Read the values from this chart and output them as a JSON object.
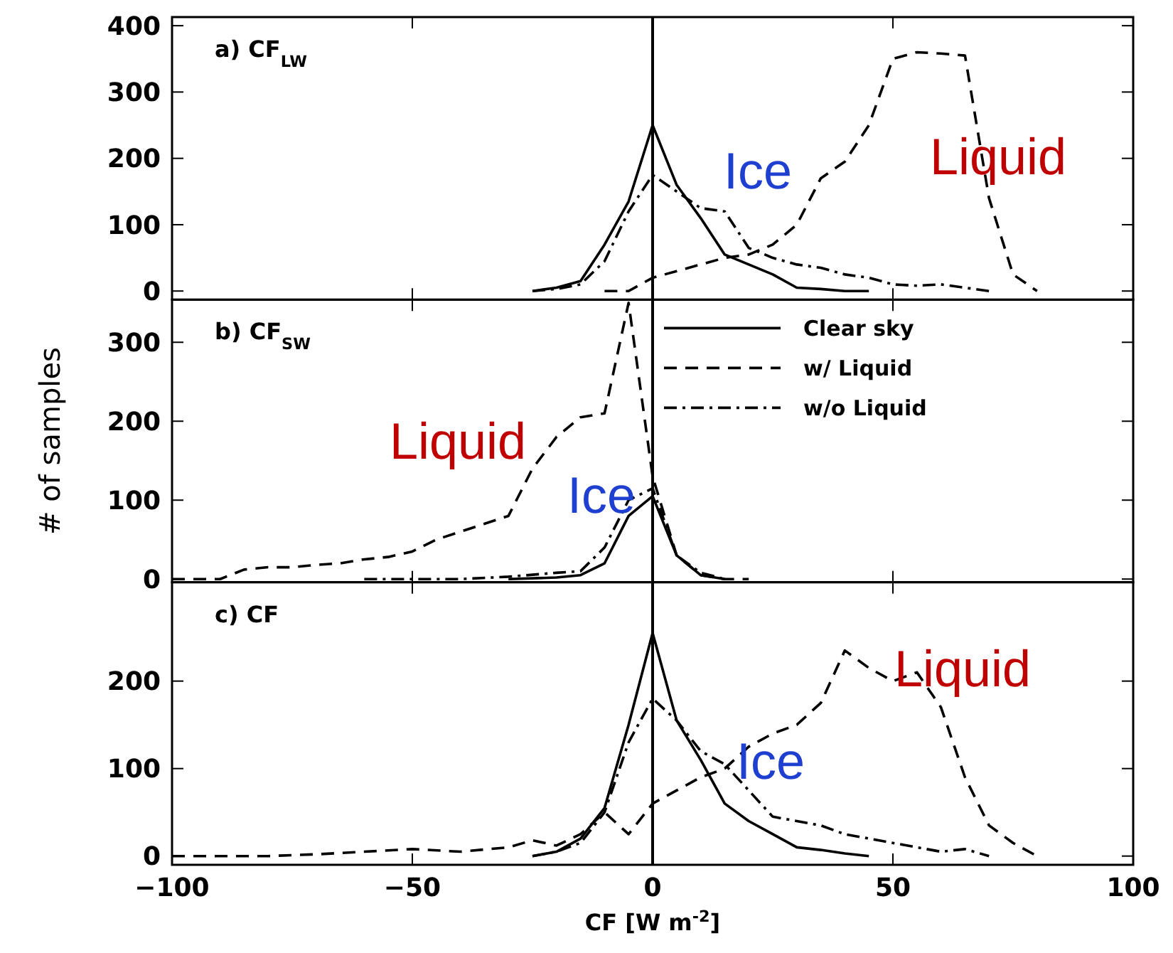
{
  "chart_data": [
    {
      "type": "line",
      "title": "a) CF$_{LW}$",
      "xlim": [
        -100,
        100
      ],
      "xticks": [
        -100,
        -50,
        0,
        50,
        100
      ],
      "ylim": [
        -13,
        413
      ],
      "yticks": [
        0,
        100,
        200,
        300,
        400
      ],
      "tick_labels": "y",
      "legend": false,
      "grid": false,
      "ref_lines": [
        {
          "axis": "x",
          "value": 0,
          "color": "#000000"
        }
      ],
      "annotations": [
        "Ice",
        "Liquid"
      ],
      "series": [
        {
          "color": "#000000",
          "line_style": "solid",
          "x": [
            -25,
            -20,
            -15,
            -10,
            -5,
            0,
            5,
            10,
            15,
            20,
            25,
            30,
            35,
            40,
            45
          ],
          "values": [
            0,
            5,
            15,
            70,
            135,
            250,
            160,
            110,
            55,
            40,
            25,
            5,
            3,
            0,
            0
          ]
        },
        {
          "color": "#000000",
          "line_style": "dashed",
          "x": [
            -10,
            -5,
            0,
            5,
            10,
            15,
            20,
            25,
            30,
            35,
            40,
            45,
            50,
            55,
            60,
            65,
            70,
            75,
            80
          ],
          "values": [
            0,
            0,
            20,
            30,
            40,
            50,
            55,
            70,
            100,
            170,
            195,
            250,
            350,
            360,
            358,
            355,
            140,
            25,
            0
          ]
        },
        {
          "color": "#000000",
          "line_style": "dashdot",
          "x": [
            -25,
            -20,
            -15,
            -10,
            -5,
            0,
            5,
            10,
            15,
            20,
            25,
            30,
            35,
            40,
            45,
            50,
            55,
            60,
            65,
            70
          ],
          "values": [
            0,
            3,
            10,
            45,
            120,
            175,
            150,
            125,
            120,
            65,
            50,
            40,
            35,
            25,
            20,
            10,
            8,
            10,
            5,
            0
          ]
        }
      ]
    },
    {
      "type": "line",
      "title": "b) CF$_{SW}$",
      "ylabel": "# of samples",
      "xlim": [
        -100,
        100
      ],
      "xticks": [
        -100,
        -50,
        0,
        50,
        100
      ],
      "ylim": [
        -4,
        354
      ],
      "yticks": [
        0,
        100,
        200,
        300
      ],
      "tick_labels": "y",
      "legend": "top right",
      "grid": false,
      "ref_lines": [
        {
          "axis": "x",
          "value": 0,
          "color": "#000000"
        }
      ],
      "annotations": [
        "Ice",
        "Liquid"
      ],
      "series": [
        {
          "name": "Clear sky",
          "color": "#000000",
          "line_style": "solid",
          "x": [
            -30,
            -20,
            -15,
            -10,
            -5,
            0,
            5,
            10,
            15
          ],
          "values": [
            0,
            2,
            5,
            20,
            80,
            105,
            30,
            5,
            0
          ]
        },
        {
          "name": "w/ Liquid",
          "color": "#000000",
          "line_style": "dashed",
          "x": [
            -100,
            -90,
            -85,
            -80,
            -75,
            -70,
            -65,
            -60,
            -55,
            -50,
            -45,
            -40,
            -35,
            -30,
            -25,
            -20,
            -15,
            -10,
            -5,
            0,
            5,
            10,
            15,
            20
          ],
          "values": [
            0,
            0,
            12,
            15,
            15,
            18,
            20,
            25,
            28,
            35,
            50,
            60,
            70,
            80,
            140,
            180,
            205,
            210,
            350,
            130,
            30,
            5,
            0,
            0
          ]
        },
        {
          "name": "w/o Liquid",
          "color": "#000000",
          "line_style": "dashdot",
          "x": [
            -60,
            -40,
            -30,
            -20,
            -15,
            -10,
            -5,
            0,
            5,
            10,
            15
          ],
          "values": [
            0,
            0,
            3,
            8,
            10,
            40,
            100,
            115,
            30,
            8,
            0
          ]
        }
      ]
    },
    {
      "type": "line",
      "title": "c) CF",
      "xlabel": "CF [W m$^{-2}$]",
      "xlim": [
        -100,
        100
      ],
      "xticks": [
        -100,
        -50,
        0,
        50,
        100
      ],
      "ylim": [
        -10,
        313
      ],
      "yticks": [
        0,
        100,
        200
      ],
      "legend": false,
      "grid": false,
      "ref_lines": [
        {
          "axis": "x",
          "value": 0,
          "color": "#000000"
        }
      ],
      "annotations": [
        "Ice",
        "Liquid"
      ],
      "series": [
        {
          "color": "#000000",
          "line_style": "solid",
          "x": [
            -25,
            -20,
            -15,
            -10,
            -5,
            0,
            5,
            10,
            15,
            20,
            25,
            30,
            35,
            40,
            45
          ],
          "values": [
            0,
            5,
            20,
            55,
            150,
            255,
            155,
            110,
            60,
            40,
            25,
            10,
            7,
            3,
            0
          ]
        },
        {
          "color": "#000000",
          "line_style": "dashed",
          "x": [
            -100,
            -80,
            -70,
            -60,
            -50,
            -40,
            -30,
            -25,
            -20,
            -15,
            -10,
            -5,
            0,
            5,
            10,
            15,
            20,
            25,
            30,
            35,
            40,
            45,
            50,
            55,
            60,
            65,
            70,
            75,
            80
          ],
          "values": [
            0,
            0,
            2,
            5,
            8,
            5,
            10,
            18,
            12,
            25,
            50,
            25,
            60,
            75,
            90,
            100,
            125,
            140,
            150,
            175,
            235,
            215,
            200,
            210,
            170,
            90,
            35,
            15,
            0
          ]
        },
        {
          "color": "#000000",
          "line_style": "dashdot",
          "x": [
            -25,
            -20,
            -15,
            -10,
            -5,
            0,
            5,
            10,
            15,
            20,
            25,
            30,
            35,
            40,
            45,
            50,
            55,
            60,
            65,
            70
          ],
          "values": [
            0,
            5,
            15,
            50,
            130,
            180,
            155,
            120,
            105,
            75,
            45,
            40,
            35,
            25,
            20,
            15,
            10,
            5,
            8,
            0
          ]
        }
      ]
    }
  ]
}
